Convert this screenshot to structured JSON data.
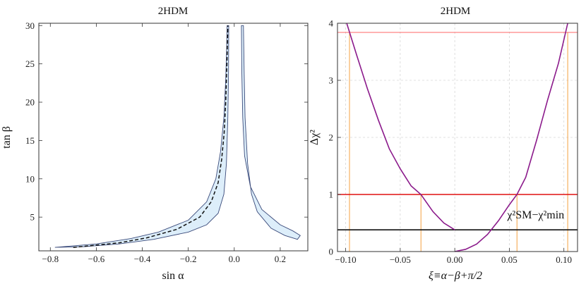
{
  "chart_data": [
    {
      "type": "area",
      "title": "2HDM",
      "xlabel": "sin α",
      "ylabel": "tan β",
      "xlim": [
        -0.85,
        0.32
      ],
      "ylim": [
        0.6,
        30.3
      ],
      "xticks": [
        -0.8,
        -0.6,
        -0.4,
        -0.2,
        0.0,
        0.2
      ],
      "xticklabels": [
        "−0.8",
        "−0.6",
        "−0.4",
        "−0.2",
        "0.0",
        "0.2"
      ],
      "yticks": [
        5,
        10,
        15,
        20,
        25,
        30
      ],
      "yticklabels": [
        "5",
        "10",
        "15",
        "20",
        "25",
        "30"
      ],
      "grid": false,
      "fill_color": "#ddeefa",
      "edge_color": "#3a4a7a",
      "regions": [
        {
          "boundary": [
            [
              -0.78,
              1.05
            ],
            [
              -0.6,
              1.5
            ],
            [
              -0.45,
              2.2
            ],
            [
              -0.33,
              3.05
            ],
            [
              -0.2,
              4.6
            ],
            [
              -0.12,
              7.0
            ],
            [
              -0.08,
              10.0
            ],
            [
              -0.06,
              13.5
            ],
            [
              -0.045,
              18.0
            ],
            [
              -0.037,
              23.0
            ],
            [
              -0.033,
              27.0
            ],
            [
              -0.031,
              30.0
            ],
            [
              -0.024,
              30.0
            ],
            [
              -0.025,
              24.0
            ],
            [
              -0.028,
              18.0
            ],
            [
              -0.034,
              12.0
            ],
            [
              -0.045,
              8.0
            ],
            [
              -0.07,
              5.5
            ],
            [
              -0.12,
              4.0
            ],
            [
              -0.2,
              3.05
            ],
            [
              -0.35,
              2.1
            ],
            [
              -0.5,
              1.5
            ],
            [
              -0.65,
              1.15
            ],
            [
              -0.78,
              1.05
            ]
          ]
        },
        {
          "boundary": [
            [
              0.031,
              30.0
            ],
            [
              0.033,
              24.0
            ],
            [
              0.037,
              18.0
            ],
            [
              0.045,
              13.0
            ],
            [
              0.07,
              9.0
            ],
            [
              0.12,
              6.0
            ],
            [
              0.2,
              4.0
            ],
            [
              0.255,
              3.2
            ],
            [
              0.287,
              2.6
            ],
            [
              0.275,
              2.1
            ],
            [
              0.22,
              2.6
            ],
            [
              0.16,
              3.55
            ],
            [
              0.1,
              5.7
            ],
            [
              0.075,
              8.0
            ],
            [
              0.058,
              12.0
            ],
            [
              0.047,
              18.0
            ],
            [
              0.043,
              24.0
            ],
            [
              0.04,
              30.0
            ],
            [
              0.031,
              30.0
            ]
          ]
        }
      ],
      "dashed_curve": [
        [
          -0.7,
          1.05
        ],
        [
          -0.5,
          1.65
        ],
        [
          -0.38,
          2.3
        ],
        [
          -0.25,
          3.4
        ],
        [
          -0.15,
          5.0
        ],
        [
          -0.1,
          7.0
        ],
        [
          -0.07,
          9.5
        ],
        [
          -0.055,
          12.5
        ],
        [
          -0.044,
          16.0
        ],
        [
          -0.037,
          20.0
        ],
        [
          -0.032,
          25.0
        ],
        [
          -0.028,
          30.0
        ]
      ]
    },
    {
      "type": "line",
      "title": "2HDM",
      "xlabel": "ξ≡α−β+π/2",
      "ylabel": "Δχ²",
      "xlim": [
        -0.1075,
        0.1125
      ],
      "ylim": [
        0,
        4
      ],
      "xticks": [
        -0.1,
        -0.05,
        0.0,
        0.05,
        0.1
      ],
      "xticklabels": [
        "−0.10",
        "−0.05",
        "0.00",
        "0.05",
        "0.10"
      ],
      "yticks": [
        0,
        1,
        2,
        3,
        4
      ],
      "yticklabels": [
        "0",
        "1",
        "2",
        "3",
        "4"
      ],
      "grid": true,
      "series": [
        {
          "color": "#8b1a8b",
          "points": [
            [
              -0.099,
              4.0
            ],
            [
              -0.09,
              3.45
            ],
            [
              -0.08,
              2.85
            ],
            [
              -0.07,
              2.3
            ],
            [
              -0.06,
              1.8
            ],
            [
              -0.05,
              1.45
            ],
            [
              -0.04,
              1.15
            ],
            [
              -0.031,
              1.0
            ],
            [
              -0.02,
              0.7
            ],
            [
              -0.01,
              0.5
            ],
            [
              0.0,
              0.38
            ]
          ]
        },
        {
          "color": "#8b1a8b",
          "points": [
            [
              0.0,
              0.0
            ],
            [
              0.01,
              0.04
            ],
            [
              0.02,
              0.13
            ],
            [
              0.03,
              0.3
            ],
            [
              0.04,
              0.54
            ],
            [
              0.05,
              0.82
            ],
            [
              0.057,
              1.0
            ],
            [
              0.065,
              1.3
            ],
            [
              0.075,
              1.95
            ],
            [
              0.085,
              2.65
            ],
            [
              0.095,
              3.3
            ],
            [
              0.1035,
              4.0
            ]
          ]
        }
      ],
      "hlines": [
        {
          "y": 3.84,
          "color": "#ff6666",
          "width": 1
        },
        {
          "y": 1.0,
          "color": "#e01010",
          "width": 1.6
        },
        {
          "y": 0.38,
          "color": "#111111",
          "width": 1.6
        }
      ],
      "vlines": [
        {
          "x": -0.0965,
          "ymax": 3.84
        },
        {
          "x": -0.031,
          "ymax": 1.0
        },
        {
          "x": 0.057,
          "ymax": 1.0
        },
        {
          "x": 0.1035,
          "ymax": 3.84
        }
      ],
      "vline_color": "#f5a040",
      "annotation": {
        "text": "χ²SM−χ²min",
        "x": 0.048,
        "y": 0.58
      }
    }
  ]
}
